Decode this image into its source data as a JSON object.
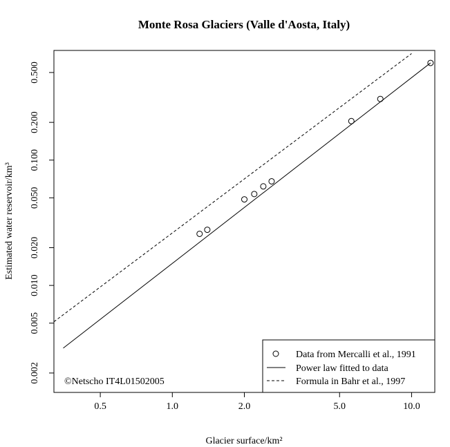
{
  "chart_data": {
    "type": "scatter",
    "title": "Monte Rosa Glaciers (Valle d'Aosta, Italy)",
    "xlabel": "Glacier surface/km²",
    "ylabel": "Estimated water reservoir/km³",
    "xscale": "log",
    "yscale": "log",
    "xlim": [
      0.32,
      12.5
    ],
    "ylim": [
      0.0014,
      0.75
    ],
    "grid": false,
    "legend_position": "bottom-right",
    "x_ticks": [
      0.5,
      1.0,
      2.0,
      5.0,
      10.0
    ],
    "x_tick_labels": [
      "0.5",
      "1.0",
      "2.0",
      "5.0",
      "10.0"
    ],
    "y_ticks": [
      0.002,
      0.005,
      0.01,
      0.02,
      0.05,
      0.1,
      0.2,
      0.5
    ],
    "y_tick_labels": [
      "0.002",
      "0.005",
      "0.010",
      "0.020",
      "0.050",
      "0.100",
      "0.200",
      "0.500"
    ],
    "series": [
      {
        "name": "Data from Mercalli et al., 1991",
        "kind": "points",
        "marker": "open-circle",
        "x": [
          1.3,
          1.4,
          2.0,
          2.2,
          2.4,
          2.6,
          5.6,
          7.4,
          12.0
        ],
        "y": [
          0.0258,
          0.0278,
          0.0486,
          0.0536,
          0.0617,
          0.0677,
          0.2047,
          0.3076,
          0.5963
        ]
      },
      {
        "name": "Power law fitted to data",
        "kind": "line",
        "dash": "solid",
        "x": [
          0.35,
          12.0
        ],
        "y": [
          0.00316,
          0.5963
        ]
      },
      {
        "name": "Formula in Bahr et al., 1997",
        "kind": "line",
        "dash": "dashed",
        "x": [
          0.32,
          10.0
        ],
        "y": [
          0.00513,
          0.7086
        ]
      }
    ],
    "annotation": "©Netscho IT4L01502005"
  }
}
